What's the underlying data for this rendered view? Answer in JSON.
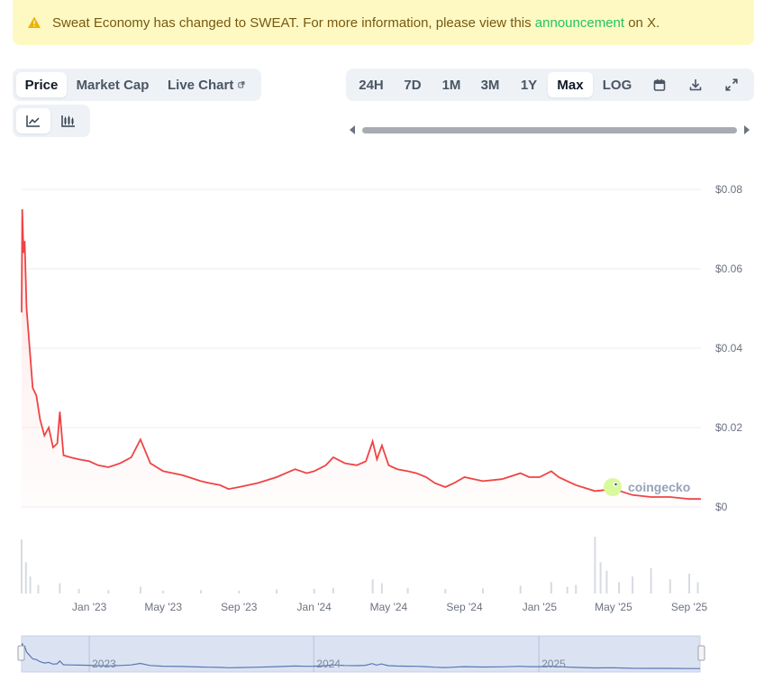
{
  "banner": {
    "prefix": "Sweat Economy has changed to SWEAT. For more information, please view this ",
    "link": "announcement",
    "suffix": " on X."
  },
  "metric_tabs": [
    {
      "label": "Price",
      "active": true
    },
    {
      "label": "Market Cap",
      "active": false
    },
    {
      "label": "Live Chart",
      "active": false
    }
  ],
  "range_tabs": [
    {
      "label": "24H",
      "active": false
    },
    {
      "label": "7D",
      "active": false
    },
    {
      "label": "1M",
      "active": false
    },
    {
      "label": "3M",
      "active": false
    },
    {
      "label": "1Y",
      "active": false
    },
    {
      "label": "Max",
      "active": true
    },
    {
      "label": "LOG",
      "active": false
    }
  ],
  "chart_type_tabs": [
    {
      "icon": "line-chart-icon",
      "active": true
    },
    {
      "icon": "candlestick-chart-icon",
      "active": false
    }
  ],
  "watermark": "coingecko",
  "colors": {
    "line": "#ef4444",
    "area": "#fee2e2",
    "volume": "#d7dbe1",
    "navigator_fill": "#dbe3f3",
    "navigator_line": "#5b77b5",
    "accent": "#22c55e"
  },
  "chart_data": {
    "type": "line",
    "title": "",
    "xlabel": "",
    "ylabel": "",
    "ylim": [
      0,
      0.08
    ],
    "y_ticks": [
      "$0",
      "$0.02",
      "$0.04",
      "$0.06",
      "$0.08"
    ],
    "y_tick_values": [
      0,
      0.02,
      0.04,
      0.06,
      0.08
    ],
    "x_ticks": [
      "Jan '23",
      "May '23",
      "Sep '23",
      "Jan '24",
      "May '24",
      "Sep '24",
      "Jan '25",
      "May '25",
      "Sep '25"
    ],
    "x_tick_dates": [
      "2023-01-01",
      "2023-05-01",
      "2023-09-01",
      "2024-01-01",
      "2024-05-01",
      "2024-09-01",
      "2025-01-01",
      "2025-05-01",
      "2025-09-01"
    ],
    "xlim": [
      "2022-09-13",
      "2025-09-20"
    ],
    "grid": true,
    "navigator_labels": [
      "2023",
      "2024",
      "2025"
    ],
    "navigator_label_dates": [
      "2023-01-01",
      "2024-01-01",
      "2025-01-01"
    ],
    "series": [
      {
        "values": [
          [
            "2022-09-13",
            0.049
          ],
          [
            "2022-09-14",
            0.075
          ],
          [
            "2022-09-16",
            0.064
          ],
          [
            "2022-09-18",
            0.067
          ],
          [
            "2022-09-21",
            0.05
          ],
          [
            "2022-09-26",
            0.04
          ],
          [
            "2022-10-01",
            0.03
          ],
          [
            "2022-10-07",
            0.028
          ],
          [
            "2022-10-13",
            0.022
          ],
          [
            "2022-10-20",
            0.018
          ],
          [
            "2022-10-27",
            0.02
          ],
          [
            "2022-11-03",
            0.015
          ],
          [
            "2022-11-10",
            0.016
          ],
          [
            "2022-11-14",
            0.024
          ],
          [
            "2022-11-20",
            0.013
          ],
          [
            "2022-12-01",
            0.0125
          ],
          [
            "2022-12-15",
            0.012
          ],
          [
            "2023-01-01",
            0.0115
          ],
          [
            "2023-01-15",
            0.0105
          ],
          [
            "2023-02-01",
            0.01
          ],
          [
            "2023-02-20",
            0.011
          ],
          [
            "2023-03-10",
            0.0125
          ],
          [
            "2023-03-25",
            0.017
          ],
          [
            "2023-04-10",
            0.011
          ],
          [
            "2023-05-01",
            0.009
          ],
          [
            "2023-06-01",
            0.008
          ],
          [
            "2023-07-01",
            0.0065
          ],
          [
            "2023-07-15",
            0.006
          ],
          [
            "2023-08-01",
            0.0055
          ],
          [
            "2023-08-15",
            0.0045
          ],
          [
            "2023-09-01",
            0.005
          ],
          [
            "2023-10-01",
            0.006
          ],
          [
            "2023-11-01",
            0.0075
          ],
          [
            "2023-12-01",
            0.0095
          ],
          [
            "2023-12-20",
            0.0085
          ],
          [
            "2024-01-01",
            0.009
          ],
          [
            "2024-01-20",
            0.0105
          ],
          [
            "2024-02-01",
            0.0125
          ],
          [
            "2024-02-20",
            0.011
          ],
          [
            "2024-03-10",
            0.0105
          ],
          [
            "2024-03-25",
            0.0115
          ],
          [
            "2024-04-05",
            0.0165
          ],
          [
            "2024-04-12",
            0.012
          ],
          [
            "2024-04-20",
            0.0155
          ],
          [
            "2024-05-01",
            0.0105
          ],
          [
            "2024-05-15",
            0.0095
          ],
          [
            "2024-06-01",
            0.009
          ],
          [
            "2024-06-15",
            0.0085
          ],
          [
            "2024-07-01",
            0.0075
          ],
          [
            "2024-07-15",
            0.006
          ],
          [
            "2024-08-01",
            0.005
          ],
          [
            "2024-08-15",
            0.006
          ],
          [
            "2024-09-01",
            0.0075
          ],
          [
            "2024-10-01",
            0.0065
          ],
          [
            "2024-11-01",
            0.007
          ],
          [
            "2024-12-01",
            0.0085
          ],
          [
            "2024-12-15",
            0.0075
          ],
          [
            "2025-01-01",
            0.0075
          ],
          [
            "2025-01-20",
            0.009
          ],
          [
            "2025-02-01",
            0.0075
          ],
          [
            "2025-03-01",
            0.0055
          ],
          [
            "2025-04-01",
            0.004
          ],
          [
            "2025-05-01",
            0.0045
          ],
          [
            "2025-06-01",
            0.003
          ],
          [
            "2025-07-01",
            0.0025
          ],
          [
            "2025-08-01",
            0.0025
          ],
          [
            "2025-09-01",
            0.002
          ],
          [
            "2025-09-20",
            0.002
          ]
        ]
      }
    ],
    "volume": [
      [
        "2022-09-13",
        0.95
      ],
      [
        "2022-09-20",
        0.55
      ],
      [
        "2022-09-27",
        0.3
      ],
      [
        "2022-10-10",
        0.15
      ],
      [
        "2022-11-14",
        0.18
      ],
      [
        "2022-12-15",
        0.08
      ],
      [
        "2023-02-01",
        0.06
      ],
      [
        "2023-03-25",
        0.12
      ],
      [
        "2023-05-01",
        0.05
      ],
      [
        "2023-07-01",
        0.06
      ],
      [
        "2023-09-01",
        0.05
      ],
      [
        "2023-11-01",
        0.07
      ],
      [
        "2024-01-01",
        0.08
      ],
      [
        "2024-02-01",
        0.1
      ],
      [
        "2024-04-05",
        0.25
      ],
      [
        "2024-04-20",
        0.18
      ],
      [
        "2024-06-01",
        0.1
      ],
      [
        "2024-08-01",
        0.08
      ],
      [
        "2024-10-01",
        0.09
      ],
      [
        "2024-12-01",
        0.14
      ],
      [
        "2025-01-20",
        0.2
      ],
      [
        "2025-02-15",
        0.12
      ],
      [
        "2025-03-01",
        0.15
      ],
      [
        "2025-04-01",
        1.0
      ],
      [
        "2025-04-10",
        0.55
      ],
      [
        "2025-04-20",
        0.4
      ],
      [
        "2025-05-10",
        0.2
      ],
      [
        "2025-06-01",
        0.3
      ],
      [
        "2025-07-01",
        0.45
      ],
      [
        "2025-08-01",
        0.25
      ],
      [
        "2025-09-01",
        0.35
      ],
      [
        "2025-09-15",
        0.2
      ]
    ]
  }
}
